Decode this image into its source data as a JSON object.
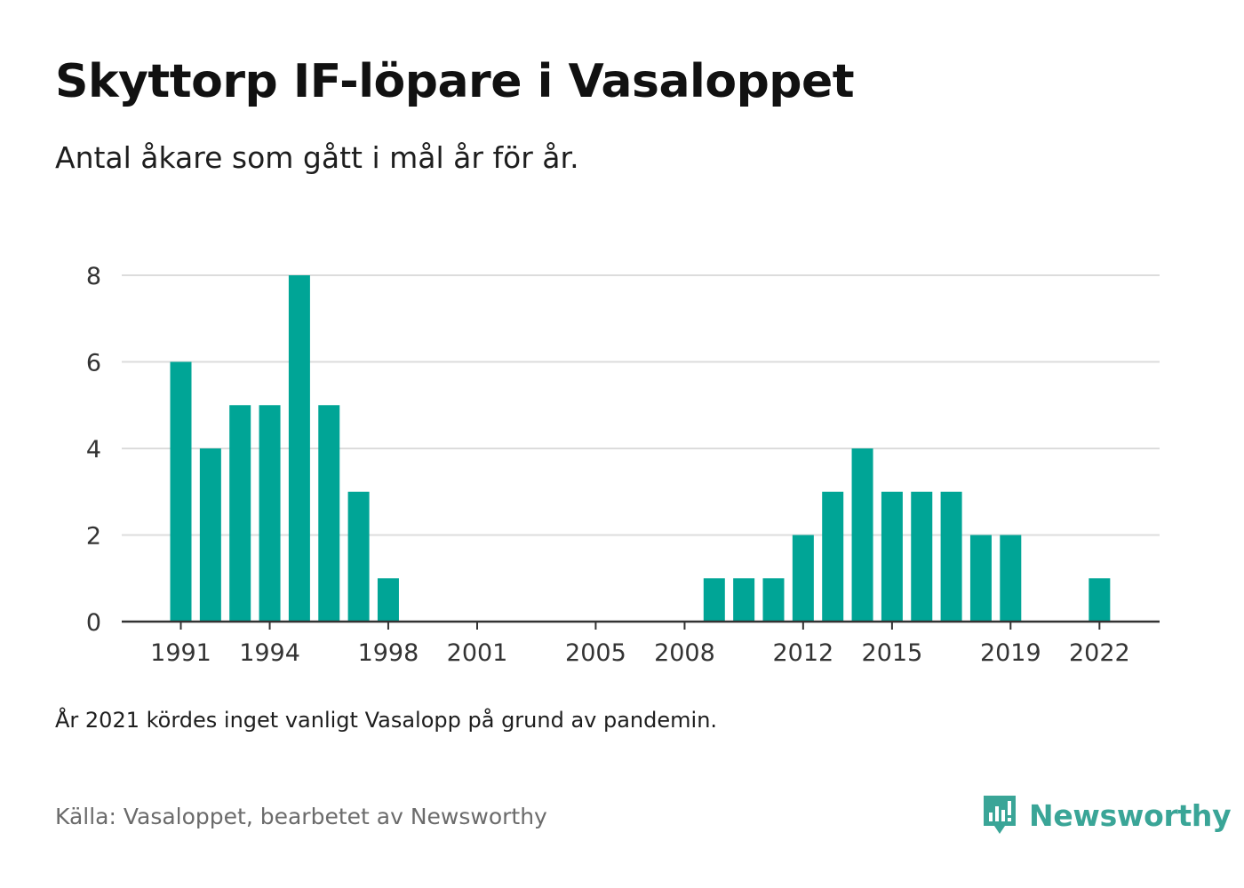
{
  "header": {
    "title": "Skyttorp IF-löpare i Vasaloppet",
    "subtitle": "Antal åkare som gått i mål år för år."
  },
  "footer": {
    "note": "År 2021 kördes inget vanligt Vasalopp på grund av pandemin.",
    "source": "Källa: Vasaloppet, bearbetet av Newsworthy",
    "brand": "Newsworthy",
    "brand_icon": "newsworthy-logo-icon"
  },
  "colors": {
    "bar": "#00a596",
    "grid": "#dcdcdc",
    "axis": "#333333",
    "brand": "#3aa597"
  },
  "chart_data": {
    "type": "bar",
    "title": "Skyttorp IF-löpare i Vasaloppet",
    "subtitle": "Antal åkare som gått i mål år för år.",
    "xlabel": "",
    "ylabel": "",
    "ylim": [
      0,
      8
    ],
    "yticks": [
      "0",
      "2",
      "4",
      "6",
      "8"
    ],
    "xticks": [
      "1991",
      "1994",
      "1998",
      "2001",
      "2005",
      "2008",
      "2012",
      "2015",
      "2019",
      "2022"
    ],
    "grid": true,
    "categories": [
      "1991",
      "1992",
      "1993",
      "1994",
      "1995",
      "1996",
      "1997",
      "1998",
      "1999",
      "2000",
      "2001",
      "2002",
      "2003",
      "2004",
      "2005",
      "2006",
      "2007",
      "2008",
      "2009",
      "2010",
      "2011",
      "2012",
      "2013",
      "2014",
      "2015",
      "2016",
      "2017",
      "2018",
      "2019",
      "2020",
      "2021",
      "2022"
    ],
    "values": [
      6,
      4,
      5,
      5,
      8,
      5,
      3,
      1,
      0,
      0,
      0,
      0,
      0,
      0,
      0,
      0,
      0,
      0,
      1,
      1,
      1,
      2,
      3,
      4,
      3,
      3,
      3,
      2,
      2,
      0,
      0,
      1
    ]
  }
}
